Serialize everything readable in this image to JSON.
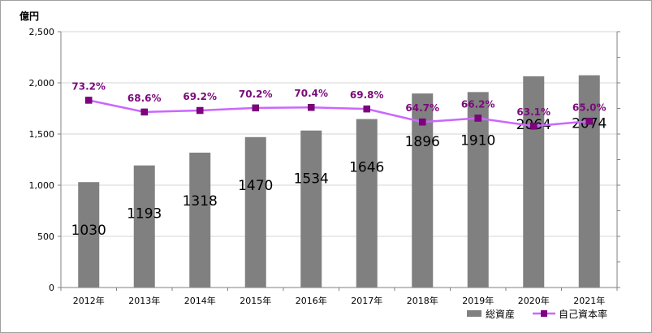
{
  "chart_data": {
    "type": "bar+line",
    "unit_label": "億円",
    "categories": [
      "2012年",
      "2013年",
      "2014年",
      "2015年",
      "2016年",
      "2017年",
      "2018年",
      "2019年",
      "2020年",
      "2021年"
    ],
    "series": [
      {
        "name": "総資産",
        "type": "bar",
        "values": [
          1030,
          1193,
          1318,
          1470,
          1534,
          1646,
          1896,
          1910,
          2064,
          2074
        ],
        "color": "#808080"
      },
      {
        "name": "自己資本率",
        "type": "line",
        "values": [
          73.2,
          68.6,
          69.2,
          70.2,
          70.4,
          69.8,
          64.7,
          66.2,
          63.1,
          65.0
        ],
        "color": "#cc66ff",
        "marker_color": "#800080"
      }
    ],
    "pct_labels": [
      "73.2%",
      "68.6%",
      "69.2%",
      "70.2%",
      "70.4%",
      "69.8%",
      "64.7%",
      "66.2%",
      "63.1%",
      "65.0%"
    ],
    "y_ticks": [
      "0",
      "500",
      "1,000",
      "1,500",
      "2,000",
      "2,500"
    ],
    "ylim": [
      0,
      2500
    ],
    "y2lim": [
      0,
      100
    ],
    "grid": true,
    "legend_position": "bottom-right"
  }
}
